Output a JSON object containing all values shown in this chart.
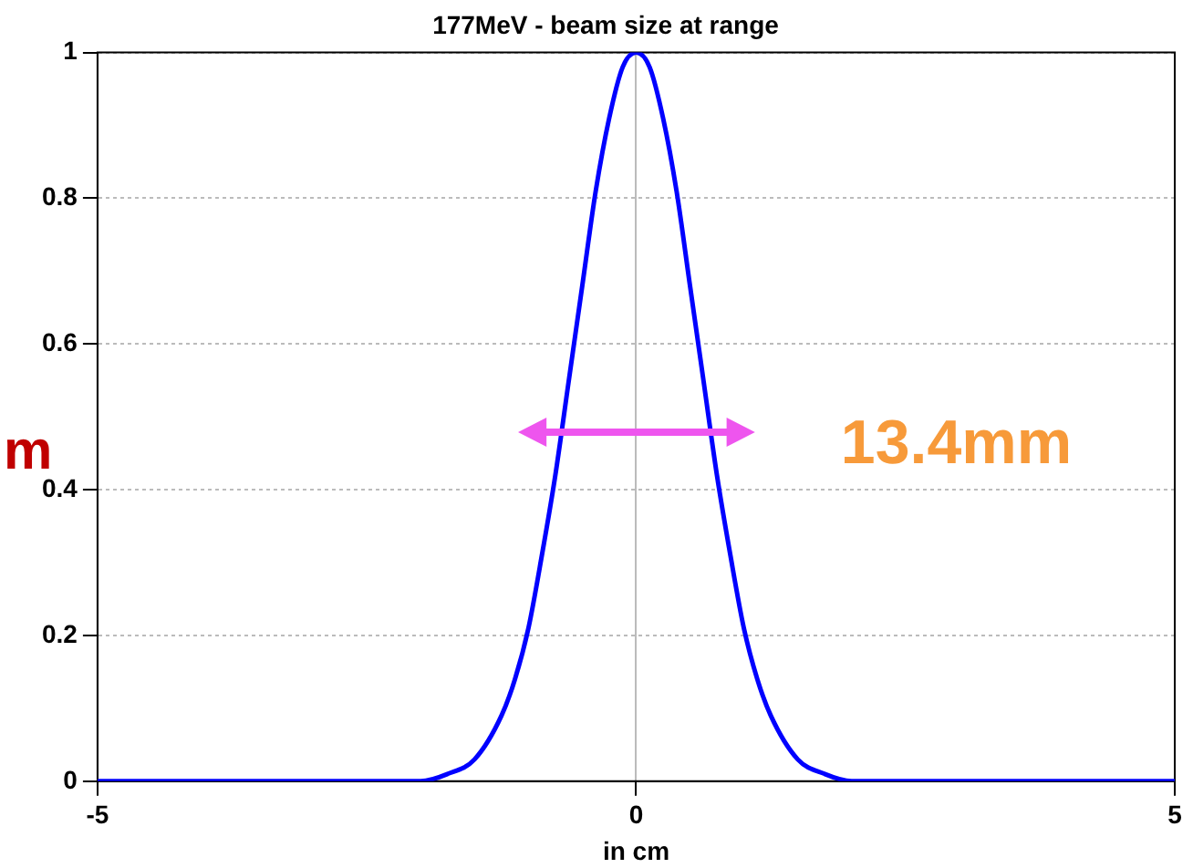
{
  "chart_data": {
    "type": "line",
    "title": "177MeV - beam size at range",
    "xlabel": "in cm",
    "x": [
      -5,
      -2.5,
      -2,
      -1.75,
      -1.5,
      -1.25,
      -1.125,
      -1,
      -0.875,
      -0.75,
      -0.625,
      -0.5,
      -0.375,
      -0.25,
      -0.125,
      0,
      0.125,
      0.25,
      0.375,
      0.5,
      0.625,
      0.75,
      0.875,
      1,
      1.125,
      1.25,
      1.5,
      1.75,
      2,
      2.5,
      5
    ],
    "series": [
      {
        "color": "#0000ff",
        "values": [
          0,
          0,
          0,
          0.01,
          0.03,
          0.09,
          0.14,
          0.21,
          0.31,
          0.42,
          0.55,
          0.68,
          0.81,
          0.91,
          0.98,
          1,
          0.98,
          0.91,
          0.81,
          0.68,
          0.55,
          0.42,
          0.31,
          0.21,
          0.14,
          0.09,
          0.03,
          0.01,
          0,
          0,
          0
        ]
      }
    ],
    "xlim": [
      -5,
      5
    ],
    "xticks": [
      -5,
      0,
      5
    ],
    "ylim": [
      0,
      1
    ],
    "yticks": [
      0,
      0.2,
      0.4,
      0.6,
      0.8,
      1
    ],
    "grid": true,
    "legend": false,
    "marker": "none",
    "line_style": "solid",
    "annotations": [
      "13.4mm",
      "m"
    ]
  }
}
